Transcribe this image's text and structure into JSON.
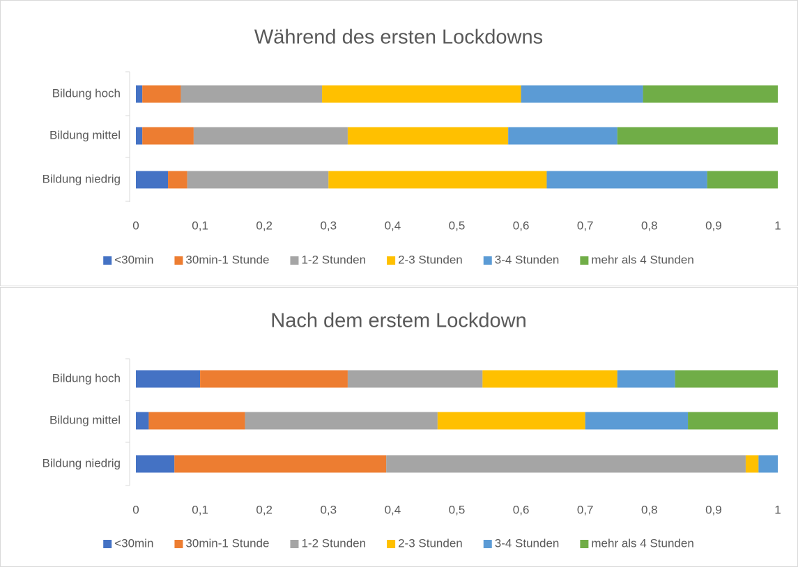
{
  "chart_data": [
    {
      "type": "stacked_bar_horizontal",
      "title": "Während des ersten Lockdowns",
      "categories": [
        "Bildung hoch",
        "Bildung mittel",
        "Bildung niedrig"
      ],
      "series": [
        {
          "name": "<30min",
          "color": "#4472c4",
          "values": [
            0.01,
            0.01,
            0.05
          ]
        },
        {
          "name": "30min-1 Stunde",
          "color": "#ed7d31",
          "values": [
            0.06,
            0.08,
            0.03
          ]
        },
        {
          "name": "1-2 Stunden",
          "color": "#a5a5a5",
          "values": [
            0.22,
            0.24,
            0.22
          ]
        },
        {
          "name": "2-3 Stunden",
          "color": "#ffc000",
          "values": [
            0.31,
            0.25,
            0.34
          ]
        },
        {
          "name": "3-4 Stunden",
          "color": "#5b9bd5",
          "values": [
            0.19,
            0.17,
            0.25
          ]
        },
        {
          "name": "mehr als 4 Stunden",
          "color": "#70ad47",
          "values": [
            0.21,
            0.25,
            0.11
          ]
        }
      ],
      "xlim": [
        0,
        1
      ],
      "xticks": [
        0,
        {
          "value": 0.1,
          "label": "0,1"
        },
        {
          "value": 0.2,
          "label": "0,2"
        },
        {
          "value": 0.3,
          "label": "0,3"
        },
        {
          "value": 0.4,
          "label": "0,4"
        },
        {
          "value": 0.5,
          "label": "0,5"
        },
        {
          "value": 0.6,
          "label": "0,6"
        },
        {
          "value": 0.7,
          "label": "0,7"
        },
        {
          "value": 0.8,
          "label": "0,8"
        },
        {
          "value": 0.9,
          "label": "0,9"
        },
        1
      ],
      "grid": false,
      "legend": "bottom"
    },
    {
      "type": "stacked_bar_horizontal",
      "title": "Nach dem erstem Lockdown",
      "categories": [
        "Bildung hoch",
        "Bildung mittel",
        "Bildung niedrig"
      ],
      "series": [
        {
          "name": "<30min",
          "color": "#4472c4",
          "values": [
            0.1,
            0.02,
            0.06
          ]
        },
        {
          "name": "30min-1 Stunde",
          "color": "#ed7d31",
          "values": [
            0.23,
            0.15,
            0.33
          ]
        },
        {
          "name": "1-2 Stunden",
          "color": "#a5a5a5",
          "values": [
            0.21,
            0.3,
            0.56
          ]
        },
        {
          "name": "2-3 Stunden",
          "color": "#ffc000",
          "values": [
            0.21,
            0.23,
            0.02
          ]
        },
        {
          "name": "3-4 Stunden",
          "color": "#5b9bd5",
          "values": [
            0.09,
            0.16,
            0.03
          ]
        },
        {
          "name": "mehr als 4 Stunden",
          "color": "#70ad47",
          "values": [
            0.16,
            0.14,
            0
          ]
        }
      ],
      "xlim": [
        0,
        1
      ],
      "xticks": [
        0,
        {
          "value": 0.1,
          "label": "0,1"
        },
        {
          "value": 0.2,
          "label": "0,2"
        },
        {
          "value": 0.3,
          "label": "0,3"
        },
        {
          "value": 0.4,
          "label": "0,4"
        },
        {
          "value": 0.5,
          "label": "0,5"
        },
        {
          "value": 0.6,
          "label": "0,6"
        },
        {
          "value": 0.7,
          "label": "0,7"
        },
        {
          "value": 0.8,
          "label": "0,8"
        },
        {
          "value": 0.9,
          "label": "0,9"
        },
        1
      ],
      "grid": false,
      "legend": "bottom"
    }
  ]
}
